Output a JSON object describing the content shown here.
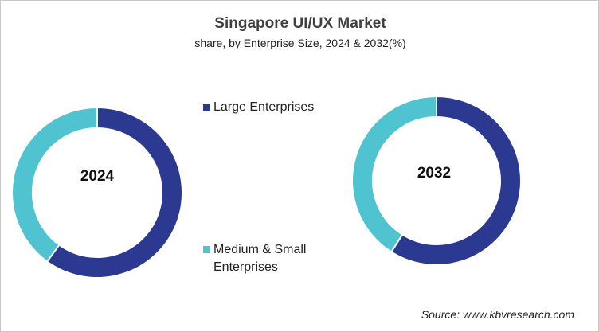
{
  "chart_data": [
    {
      "type": "pie",
      "title": "Singapore UI/UX Market",
      "subtitle": "share, by Enterprise Size, 2024 & 2032(%)",
      "center_label": "2024",
      "categories": [
        "Large Enterprises",
        "Medium & Small Enterprises"
      ],
      "values": [
        60,
        40
      ],
      "colors": [
        "#2b3990",
        "#4fc3cf"
      ]
    },
    {
      "type": "pie",
      "center_label": "2032",
      "categories": [
        "Large Enterprises",
        "Medium & Small Enterprises"
      ],
      "values": [
        59,
        41
      ],
      "colors": [
        "#2b3990",
        "#4fc3cf"
      ]
    }
  ],
  "legend": {
    "placement": "center",
    "items": [
      {
        "label": "Large Enterprises",
        "color": "#2b3990"
      },
      {
        "label_line1": "Medium & Small",
        "label_line2": "Enterprises",
        "color": "#4fc3cf"
      }
    ]
  },
  "source": "Source: www.kbvresearch.com"
}
